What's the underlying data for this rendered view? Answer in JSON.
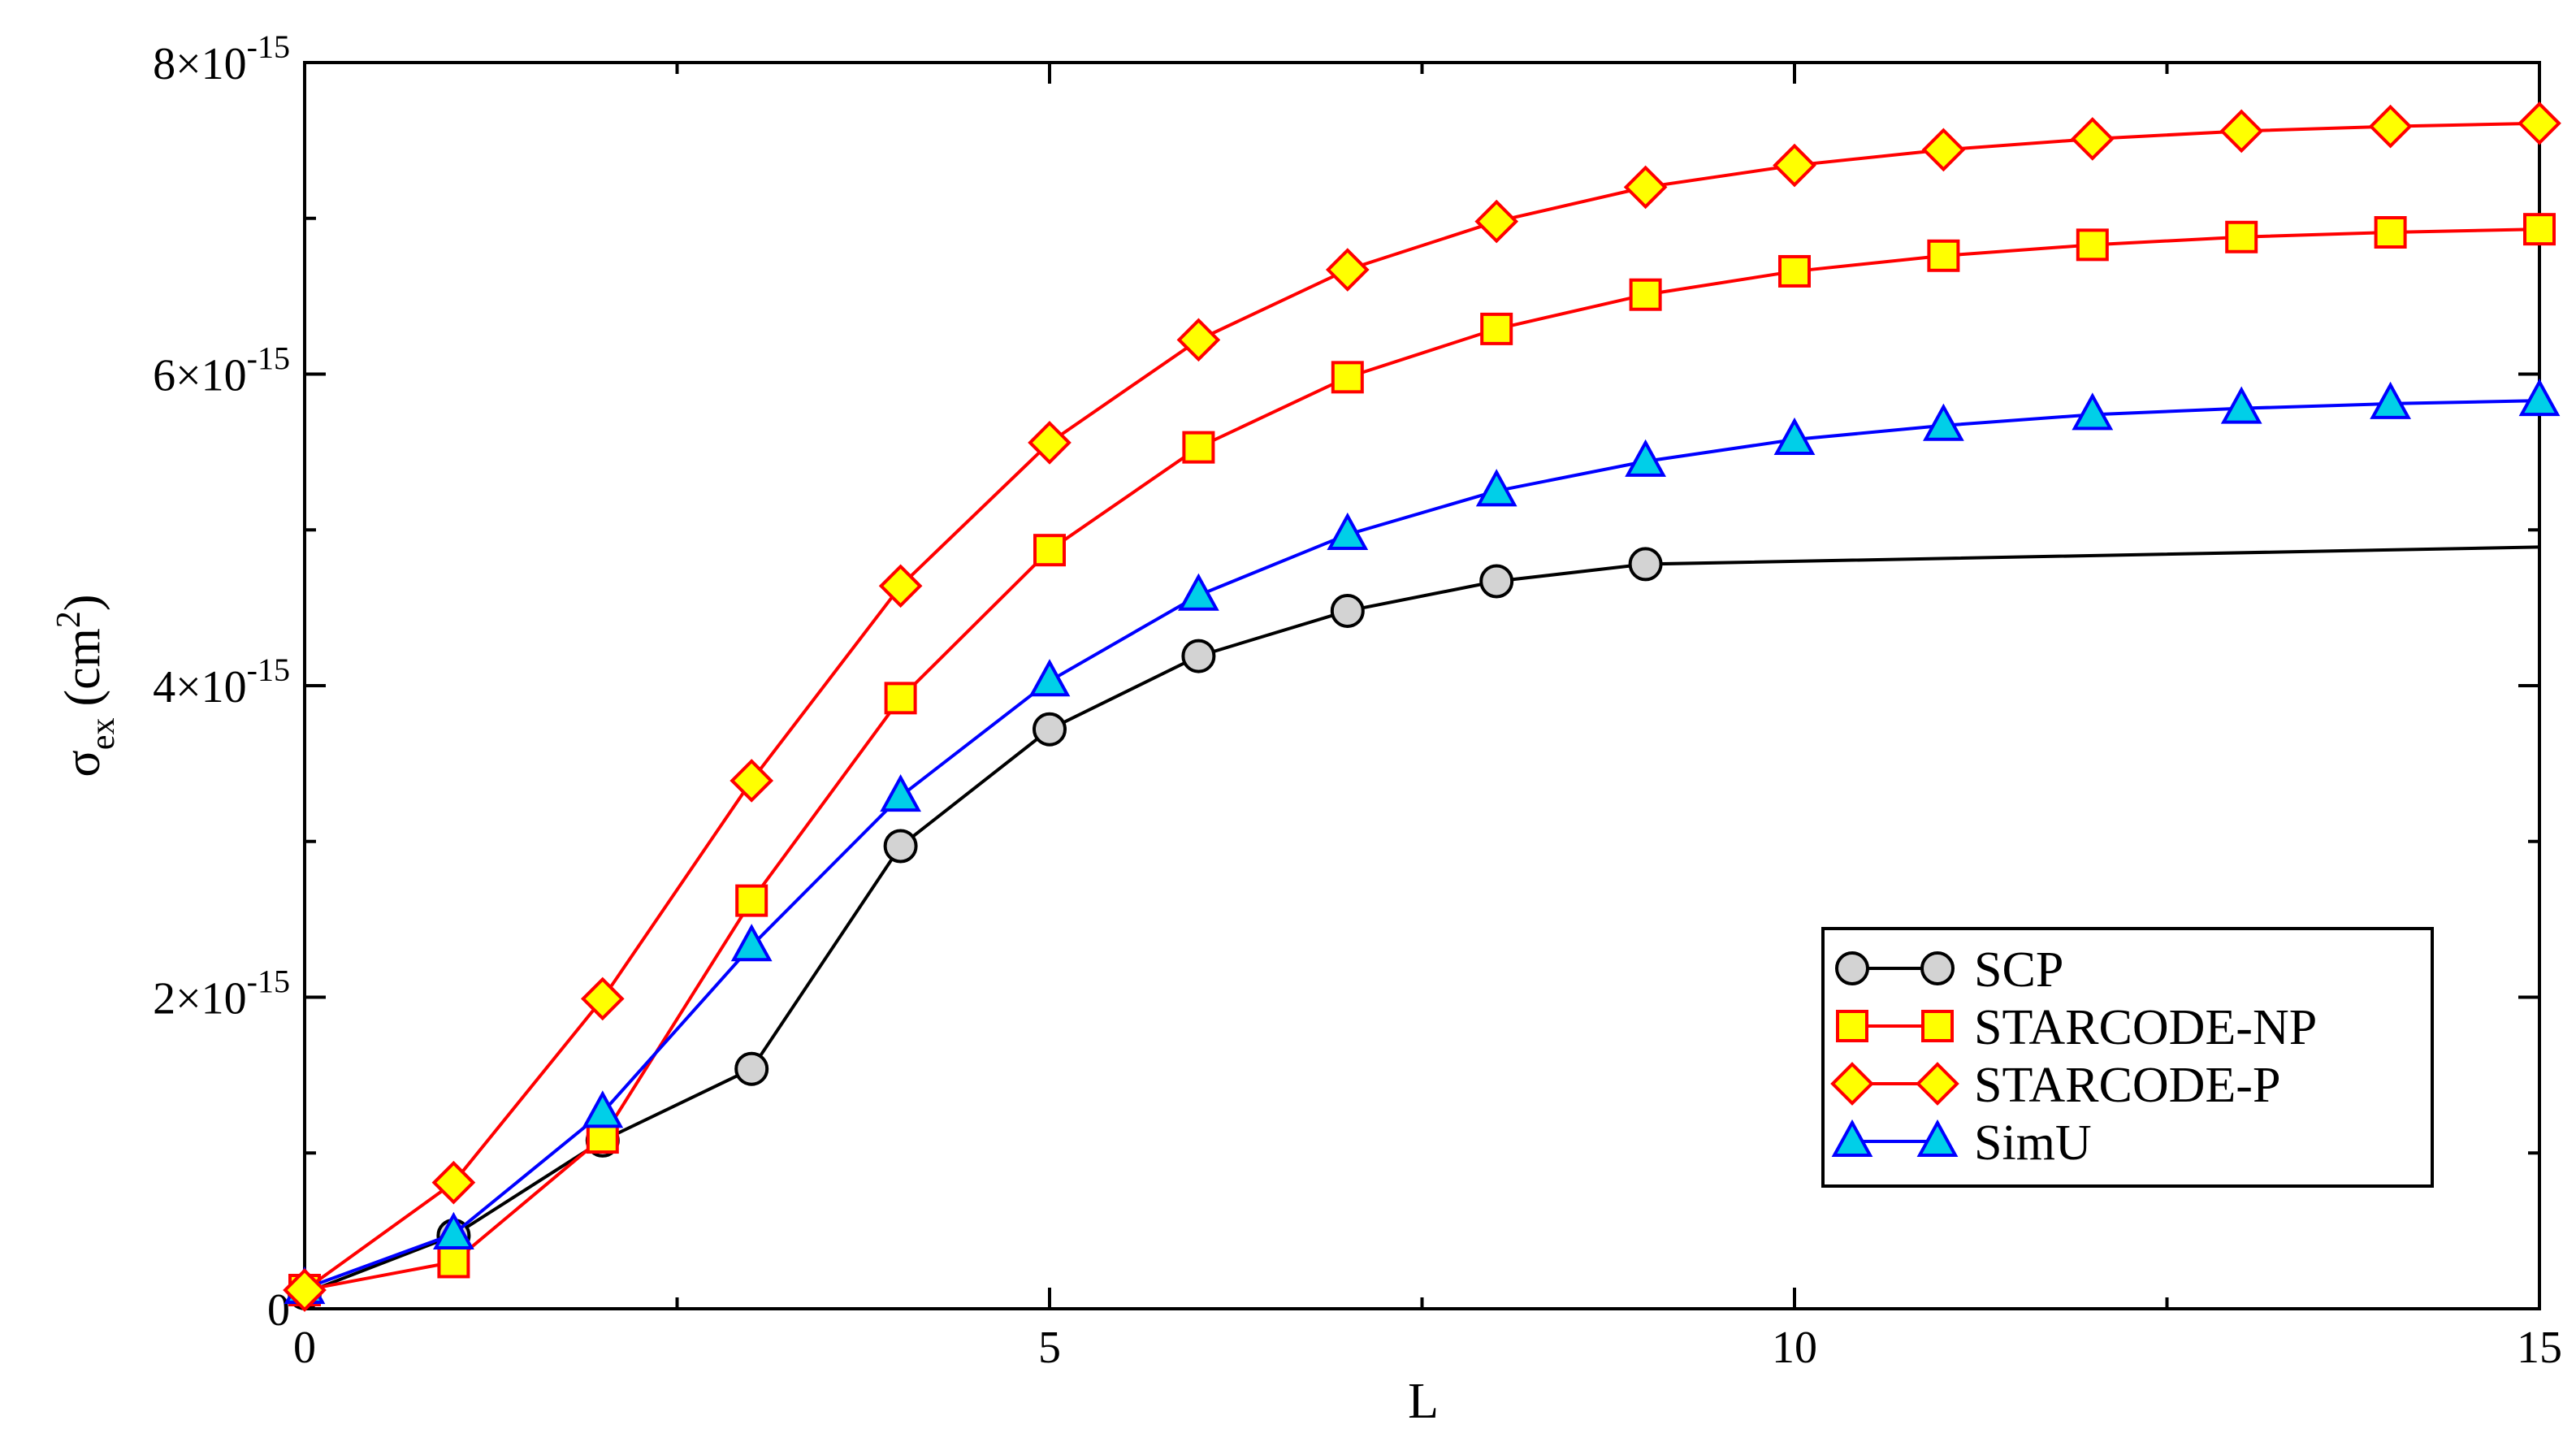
{
  "chart_data": {
    "type": "line",
    "xlabel": "L",
    "ylabel_main": "σ",
    "ylabel_sub": "ex",
    "ylabel_unit": "(cm",
    "ylabel_unit_sup": "2",
    "ylabel_unit_close": ")",
    "xlim": [
      0,
      15
    ],
    "ylim": [
      0,
      8e-15
    ],
    "x_ticks": [
      0,
      5,
      10,
      15
    ],
    "x_tick_labels": [
      "0",
      "5",
      "10",
      "15"
    ],
    "x_minor_ticks": [
      2.5,
      7.5,
      12.5
    ],
    "y_ticks": [
      {
        "value": 0,
        "mantissa": "0",
        "exponent": ""
      },
      {
        "value": 2e-15,
        "mantissa": "2×10",
        "exponent": "-15"
      },
      {
        "value": 4e-15,
        "mantissa": "4×10",
        "exponent": "-15"
      },
      {
        "value": 6e-15,
        "mantissa": "6×10",
        "exponent": "-15"
      },
      {
        "value": 8e-15,
        "mantissa": "8×10",
        "exponent": "-15"
      }
    ],
    "y_minor_ticks": [
      1e-15,
      3e-15,
      5e-15,
      7e-15
    ],
    "grid": false,
    "legend_position": "bottom-right",
    "series": [
      {
        "name": "SCP",
        "line_color": "#000000",
        "marker": "circle",
        "marker_fill": "#d3d3d3",
        "marker_stroke": "#000000",
        "x": [
          0,
          1,
          2,
          3,
          4,
          5,
          6,
          7,
          8,
          9,
          15
        ],
        "y": [
          1e-16,
          4.7e-16,
          1.08e-15,
          1.54e-15,
          2.97e-15,
          3.72e-15,
          4.19e-15,
          4.48e-15,
          4.67e-15,
          4.78e-15,
          4.89e-15
        ],
        "marker_mask": [
          true,
          true,
          true,
          true,
          true,
          true,
          true,
          true,
          true,
          true,
          false
        ]
      },
      {
        "name": "STARCODE-NP",
        "line_color": "#ff0000",
        "marker": "square",
        "marker_fill": "#ffff00",
        "marker_stroke": "#ff0000",
        "x": [
          0,
          1,
          2,
          3,
          4,
          5,
          6,
          7,
          8,
          9,
          10,
          11,
          12,
          13,
          14,
          15
        ],
        "y": [
          1.2e-16,
          3e-16,
          1.1e-15,
          2.62e-15,
          3.92e-15,
          4.87e-15,
          5.53e-15,
          5.98e-15,
          6.29e-15,
          6.51e-15,
          6.66e-15,
          6.76e-15,
          6.83e-15,
          6.88e-15,
          6.91e-15,
          6.93e-15
        ]
      },
      {
        "name": "STARCODE-P",
        "line_color": "#ff0000",
        "marker": "diamond",
        "marker_fill": "#ffff00",
        "marker_stroke": "#ff0000",
        "x": [
          0,
          1,
          2,
          3,
          4,
          5,
          6,
          7,
          8,
          9,
          10,
          11,
          12,
          13,
          14,
          15
        ],
        "y": [
          1.2e-16,
          8.1e-16,
          1.99e-15,
          3.39e-15,
          4.64e-15,
          5.56e-15,
          6.22e-15,
          6.67e-15,
          6.98e-15,
          7.2e-15,
          7.34e-15,
          7.44e-15,
          7.51e-15,
          7.56e-15,
          7.59e-15,
          7.61e-15
        ]
      },
      {
        "name": "SimU",
        "line_color": "#0000ff",
        "marker": "triangle",
        "marker_fill": "#00cfe8",
        "marker_stroke": "#0000ff",
        "x": [
          0,
          1,
          2,
          3,
          4,
          5,
          6,
          7,
          8,
          9,
          10,
          11,
          12,
          13,
          14,
          15
        ],
        "y": [
          1.3e-16,
          4.8e-16,
          1.26e-15,
          2.33e-15,
          3.29e-15,
          4.03e-15,
          4.58e-15,
          4.97e-15,
          5.25e-15,
          5.44e-15,
          5.58e-15,
          5.67e-15,
          5.74e-15,
          5.78e-15,
          5.81e-15,
          5.83e-15
        ]
      }
    ]
  }
}
